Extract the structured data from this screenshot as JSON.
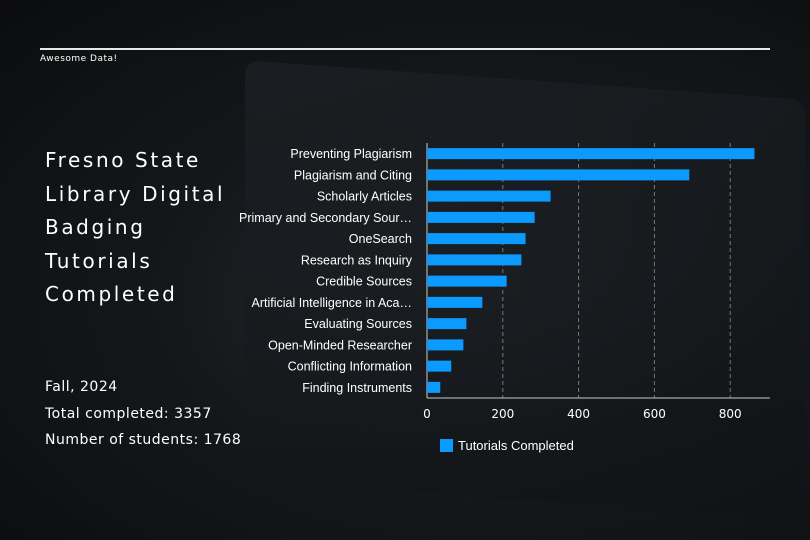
{
  "brand": "Awesome Data!",
  "title": "Fresno State Library Digital Badging Tutorials Completed",
  "stats": {
    "term": "Fall, 2024",
    "total": "Total completed: 3357",
    "students": "Number of students: 1768"
  },
  "chart_data": {
    "type": "bar",
    "orientation": "horizontal",
    "categories": [
      "Preventing Plagiarism",
      "Plagiarism and Citing",
      "Scholarly Articles",
      "Primary and Secondary Sour…",
      "OneSearch",
      "Research as Inquiry",
      "Credible Sources",
      "Artificial Intelligence in Aca…",
      "Evaluating Sources",
      "Open-Minded Researcher",
      "Conflicting Information",
      "Finding Instruments"
    ],
    "series": [
      {
        "name": "Tutorials Completed",
        "values": [
          864,
          692,
          326,
          284,
          260,
          249,
          210,
          146,
          104,
          96,
          64,
          35
        ],
        "color": "#0b9bff"
      }
    ],
    "xticks": [
      "0",
      "200",
      "400",
      "600",
      "800"
    ],
    "xlim": [
      0,
      905
    ],
    "grid": true,
    "legend": "bottom"
  }
}
